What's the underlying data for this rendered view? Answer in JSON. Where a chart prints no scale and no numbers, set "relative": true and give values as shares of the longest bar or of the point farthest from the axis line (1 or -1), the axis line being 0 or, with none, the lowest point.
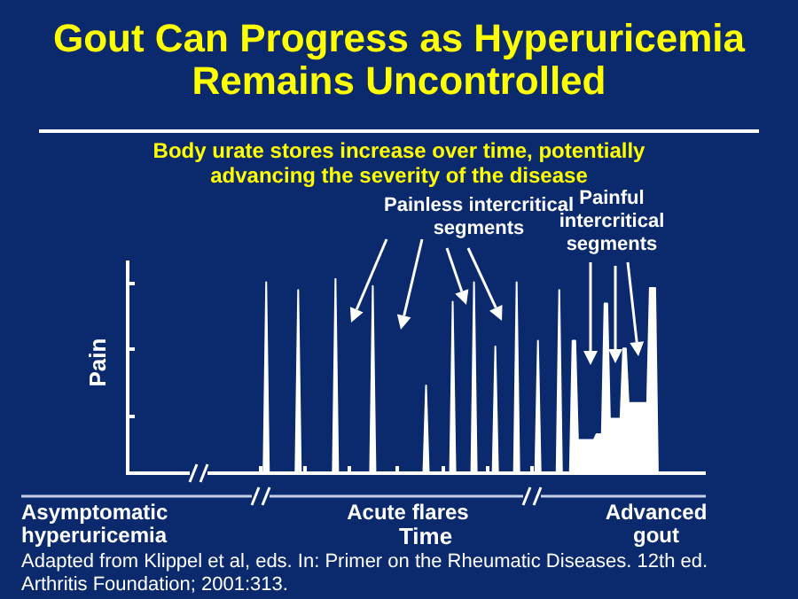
{
  "chart_data": {
    "type": "area",
    "title": "Gout Can Progress as Hyperuricemia Remains Uncontrolled",
    "subtitle": "Body urate stores increase over time, potentially advancing the severity of the disease",
    "xlabel": "Time",
    "ylabel": "Pain",
    "relative": true,
    "color": "#ffffff",
    "categories": [
      null,
      null,
      null,
      null,
      null,
      null,
      null,
      null,
      null,
      null,
      null,
      null,
      null,
      null,
      null,
      null,
      null,
      null,
      null,
      null,
      null,
      null,
      null,
      null,
      null,
      null,
      null,
      null,
      null,
      null,
      null,
      null,
      null,
      null,
      null,
      null,
      null,
      null,
      null,
      null,
      null,
      null,
      null,
      null,
      null,
      null,
      null,
      null,
      null,
      null,
      null,
      null,
      null,
      null,
      null,
      null,
      null,
      null,
      null,
      null,
      null,
      null,
      null,
      null,
      null,
      null,
      null,
      null,
      null,
      null,
      null,
      null,
      null,
      null,
      null,
      null,
      null,
      null,
      null,
      null,
      null,
      null,
      null,
      null,
      null,
      null,
      null,
      null,
      null,
      null,
      null,
      null,
      null,
      null,
      null,
      null,
      null,
      null,
      null,
      null,
      null,
      null,
      null,
      null,
      null,
      null,
      null,
      null,
      null,
      null,
      null,
      null,
      null,
      null,
      null,
      null,
      null,
      null,
      null,
      null,
      null,
      null,
      null,
      null,
      null,
      null,
      null,
      null,
      null,
      null,
      null,
      null,
      null,
      null,
      null,
      null,
      null,
      null,
      null,
      null,
      null,
      null,
      null,
      null,
      null,
      null,
      null,
      null,
      null,
      null,
      null,
      null,
      null,
      null,
      null,
      null,
      null,
      null,
      null,
      null,
      null,
      null,
      null,
      null,
      null,
      null,
      null,
      null,
      null,
      null,
      null,
      null,
      null,
      null,
      null,
      null,
      null,
      null,
      null,
      null,
      null,
      null,
      null,
      null,
      null,
      null,
      null,
      null,
      null,
      null,
      null,
      null,
      null,
      null,
      null,
      null,
      null,
      null,
      null,
      null,
      null,
      null,
      null,
      null,
      null,
      null,
      null,
      null,
      null,
      null,
      null,
      null,
      null,
      null,
      null,
      null,
      null,
      null
    ],
    "values": [
      0,
      0,
      0,
      0,
      0,
      0,
      0,
      0,
      0,
      0,
      0,
      0,
      0,
      0,
      0,
      0,
      0,
      0,
      0,
      0,
      0,
      0,
      0,
      0,
      0,
      0,
      0,
      0,
      0,
      0,
      0,
      0,
      0,
      0,
      0,
      0,
      0,
      0,
      0,
      0,
      0,
      0,
      0,
      0,
      0,
      0,
      0,
      0,
      0,
      0,
      0,
      0,
      0.98,
      0,
      0,
      0,
      0,
      0,
      0,
      0,
      0,
      0,
      0,
      0,
      0.94,
      0,
      0,
      0,
      0,
      0,
      0,
      0,
      0,
      0,
      0,
      0,
      0,
      0,
      1,
      0,
      0,
      0,
      0,
      0,
      0,
      0,
      0,
      0,
      0,
      0,
      0,
      0,
      0.96,
      0,
      0,
      0,
      0,
      0,
      0,
      0,
      0,
      0,
      0,
      0,
      0,
      0,
      0,
      0,
      0,
      0,
      0,
      0,
      0.45,
      0,
      0,
      0,
      0,
      0,
      0,
      0,
      0,
      0,
      0.88,
      0,
      0,
      0,
      0,
      0,
      0,
      0,
      0.98,
      0,
      0,
      0,
      0,
      0,
      0,
      0,
      0.65,
      0,
      0,
      0,
      0,
      0,
      0,
      0,
      0.98,
      0,
      0,
      0,
      0,
      0,
      0,
      0,
      0.68,
      0,
      0,
      0,
      0,
      0,
      0,
      0,
      0.94,
      0,
      0,
      0,
      0,
      0.68,
      0.68,
      0.17,
      0.17,
      0.17,
      0.17,
      0.17,
      0.17,
      0.17,
      0.2,
      0.2,
      0.2,
      0.87,
      0.87,
      0.28,
      0.28,
      0.28,
      0.28,
      0.28,
      0.64,
      0.64,
      0.36,
      0.36,
      0.36,
      0.36,
      0.36,
      0.36,
      0.36,
      0.36,
      0.95,
      0.95,
      0.95,
      0,
      0,
      0,
      0,
      0,
      0,
      0,
      0,
      0,
      0,
      0,
      0,
      0,
      0,
      0,
      0,
      0,
      0,
      0
    ],
    "annotations": [
      "Painless intercritical segments",
      "Painful intercritical segments",
      "Asymptomatic hyperuricemia",
      "Acute flares",
      "Advanced gout",
      "Adapted from Klippel et al, eds. In: Primer on the Rheumatic Diseases. 12th ed. Arthritis Foundation; 2001:313."
    ]
  }
}
